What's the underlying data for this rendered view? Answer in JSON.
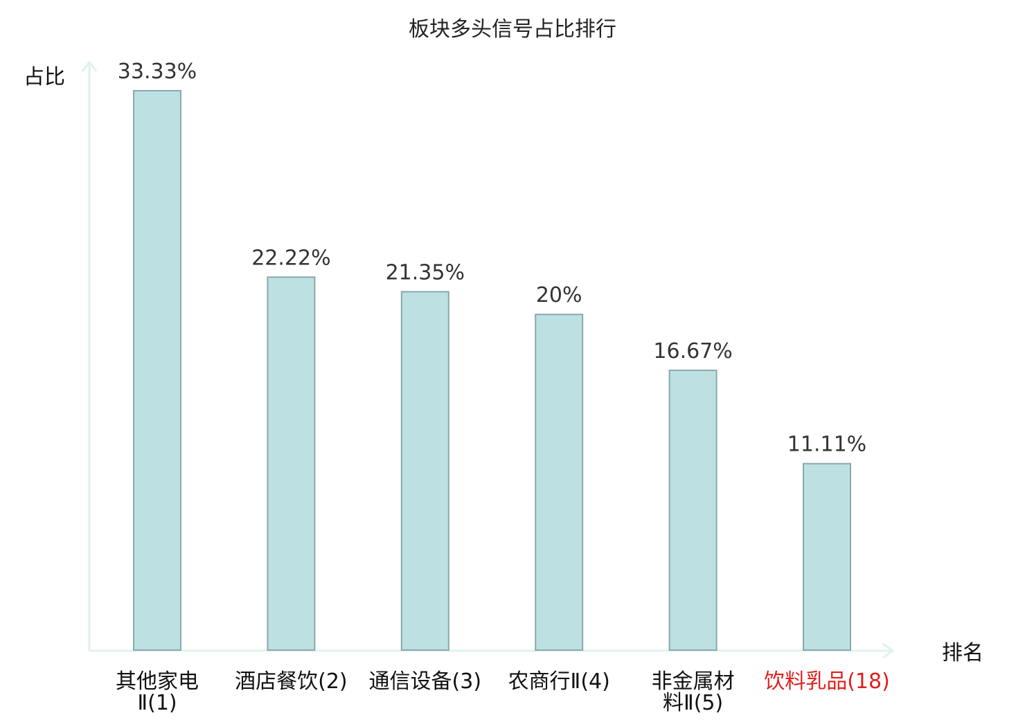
{
  "chart_data": {
    "type": "bar",
    "title": "板块多头信号占比排行",
    "ylabel": "占比",
    "xlabel": "排名",
    "ylim": [
      0,
      35
    ],
    "grid": false,
    "categories": [
      {
        "name": "其他家电",
        "rank": "Ⅱ(1)",
        "highlight": false
      },
      {
        "name": "酒店餐饮",
        "rank": "(2)",
        "highlight": false
      },
      {
        "name": "通信设备",
        "rank": "(3)",
        "highlight": false
      },
      {
        "name": "农商行",
        "rank": "Ⅱ(4)",
        "highlight": false
      },
      {
        "name": "非金属材",
        "rank": "料Ⅱ(5)",
        "highlight": false
      },
      {
        "name": "饮料乳品",
        "rank": "(18)",
        "highlight": true
      }
    ],
    "values": [
      33.33,
      22.22,
      21.35,
      20,
      16.67,
      11.11
    ],
    "value_labels": [
      "33.33%",
      "22.22%",
      "21.35%",
      "20%",
      "16.67%",
      "11.11%"
    ],
    "colors": {
      "bar_fill": "#bde0e3",
      "bar_stroke": "#8aa8aa",
      "axis": "#dff2ef",
      "label_text": "#111111",
      "label_highlight": "#e0201c"
    }
  }
}
